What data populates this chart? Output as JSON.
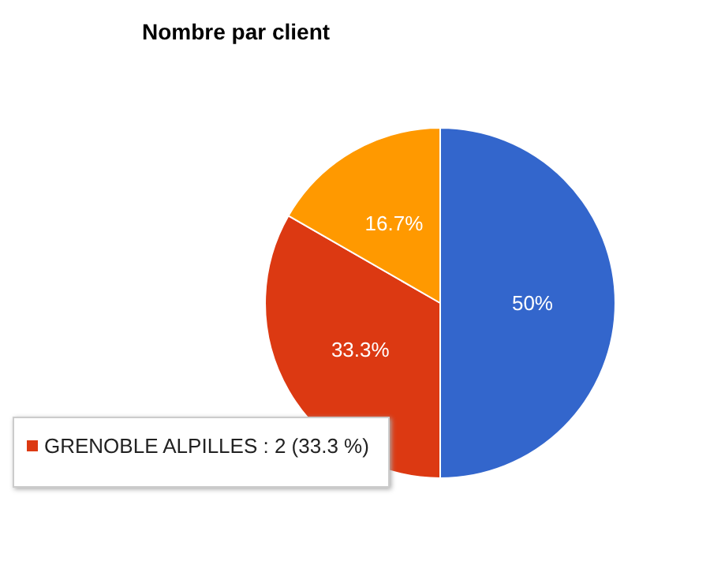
{
  "chart_data": {
    "type": "pie",
    "title": "Nombre par client",
    "categories": [
      null,
      null,
      null
    ],
    "values": [
      50,
      33.3,
      16.7
    ],
    "value_labels": [
      "50%",
      "33.3%",
      "16.7%"
    ],
    "colors": [
      "#3366cc",
      "#dc3912",
      "#ff9900"
    ],
    "annotations": [
      "GRENOBLE ALPILLES : 2 (33.3 %)"
    ]
  }
}
